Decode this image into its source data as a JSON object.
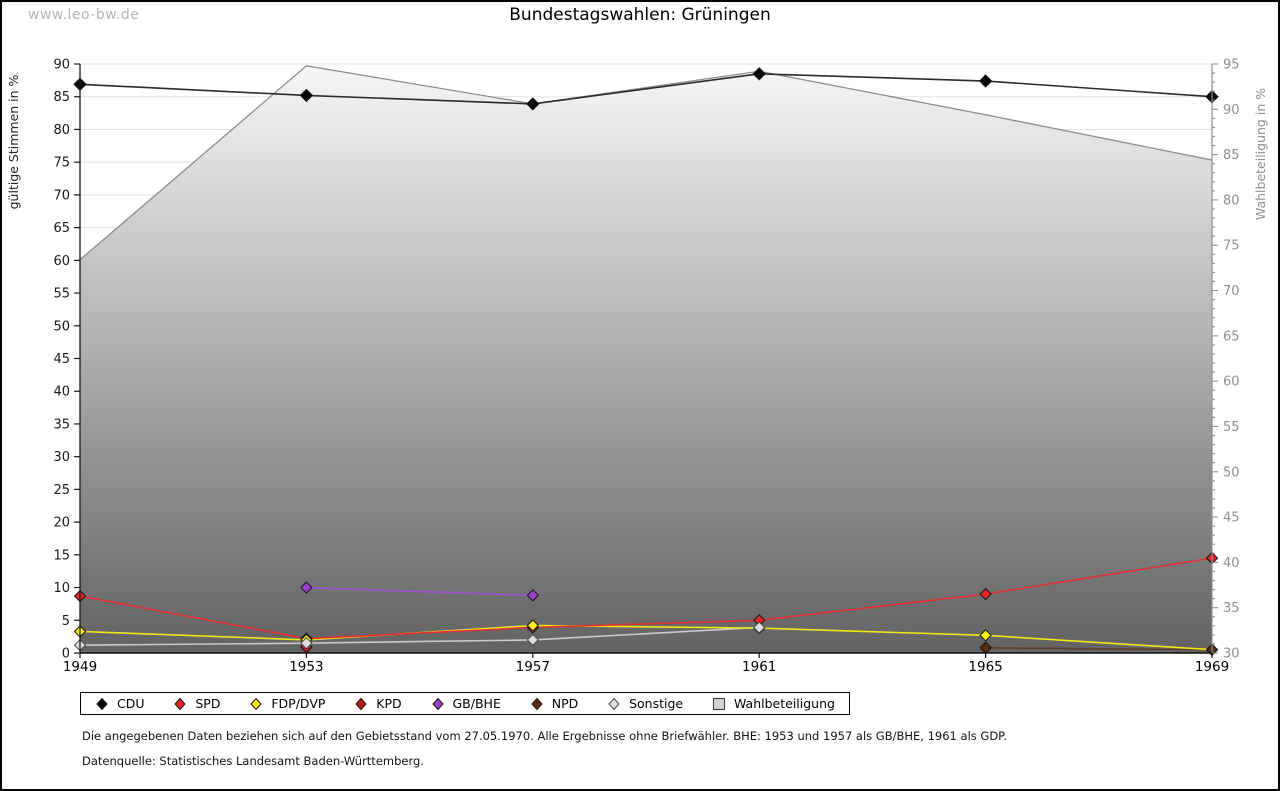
{
  "page": {
    "watermark": "www.leo-bw.de",
    "title": "Bundestagswahlen: Grüningen"
  },
  "footnotes": {
    "line1": "Die angegebenen Daten beziehen sich auf den Gebietsstand vom 27.05.1970. Alle Ergebnisse ohne Briefwähler. BHE: 1953 und 1957 als GB/BHE, 1961 als GDP.",
    "line2": "Datenquelle: Statistisches Landesamt Baden-Württemberg."
  },
  "chart_data": {
    "type": "line",
    "title": "Bundestagswahlen: Grüningen",
    "categories": [
      "1949",
      "1953",
      "1957",
      "1961",
      "1965",
      "1969"
    ],
    "left_axis": {
      "label": "gültige Stimmen in %",
      "min": 0,
      "max": 90,
      "tick_step": 5
    },
    "right_axis": {
      "label": "Wahlbeteiligung in %",
      "min": 30,
      "max": 95,
      "tick_step": 5,
      "minor_step": 1
    },
    "grid": true,
    "legend_position": "bottom",
    "colors": {
      "grid": "#e2e2e2",
      "left_axis": "#1a1a1a",
      "right_axis": "#8f8f8f",
      "area_top": "#f7f7f7",
      "area_bottom": "#626262"
    },
    "series": [
      {
        "name": "CDU",
        "axis": "left",
        "marker": "diamond",
        "color": "#2b2b2b",
        "fill": "#0a0a0a",
        "values": [
          86.9,
          85.2,
          83.9,
          88.5,
          87.4,
          85.0
        ]
      },
      {
        "name": "SPD",
        "axis": "left",
        "marker": "diamond",
        "color": "#e03131",
        "fill": "#e02626",
        "values": [
          8.7,
          2.2,
          3.9,
          5.0,
          9.0,
          14.5
        ]
      },
      {
        "name": "FDP/DVP",
        "axis": "left",
        "marker": "diamond",
        "color": "#f0e714",
        "fill": "#fff200",
        "values": [
          3.3,
          2.0,
          4.2,
          3.8,
          2.7,
          0.5
        ]
      },
      {
        "name": "KPD",
        "axis": "left",
        "marker": "diamond",
        "color": "#c01a1a",
        "fill": "#c01a1a",
        "values": [
          null,
          0.9,
          null,
          null,
          null,
          null
        ]
      },
      {
        "name": "GB/BHE",
        "axis": "left",
        "marker": "diamond",
        "color": "#a24fd6",
        "fill": "#9c3fd0",
        "values": [
          null,
          10.0,
          8.8,
          null,
          null,
          null
        ]
      },
      {
        "name": "NPD",
        "axis": "left",
        "marker": "diamond",
        "color": "#63402a",
        "fill": "#553019",
        "values": [
          null,
          null,
          null,
          null,
          0.8,
          0.5
        ]
      },
      {
        "name": "Sonstige",
        "axis": "left",
        "marker": "diamond",
        "color": "#c9c9c9",
        "fill": "#dcdcdc",
        "values": [
          1.2,
          1.5,
          2.0,
          3.9,
          null,
          null
        ]
      },
      {
        "name": "Wahlbeteiligung",
        "axis": "right",
        "marker": "square",
        "color": "#8d8d8d",
        "fill": "#d4d4d4",
        "area": true,
        "values": [
          73.4,
          94.8,
          90.6,
          94.2,
          89.4,
          84.4
        ]
      }
    ]
  }
}
